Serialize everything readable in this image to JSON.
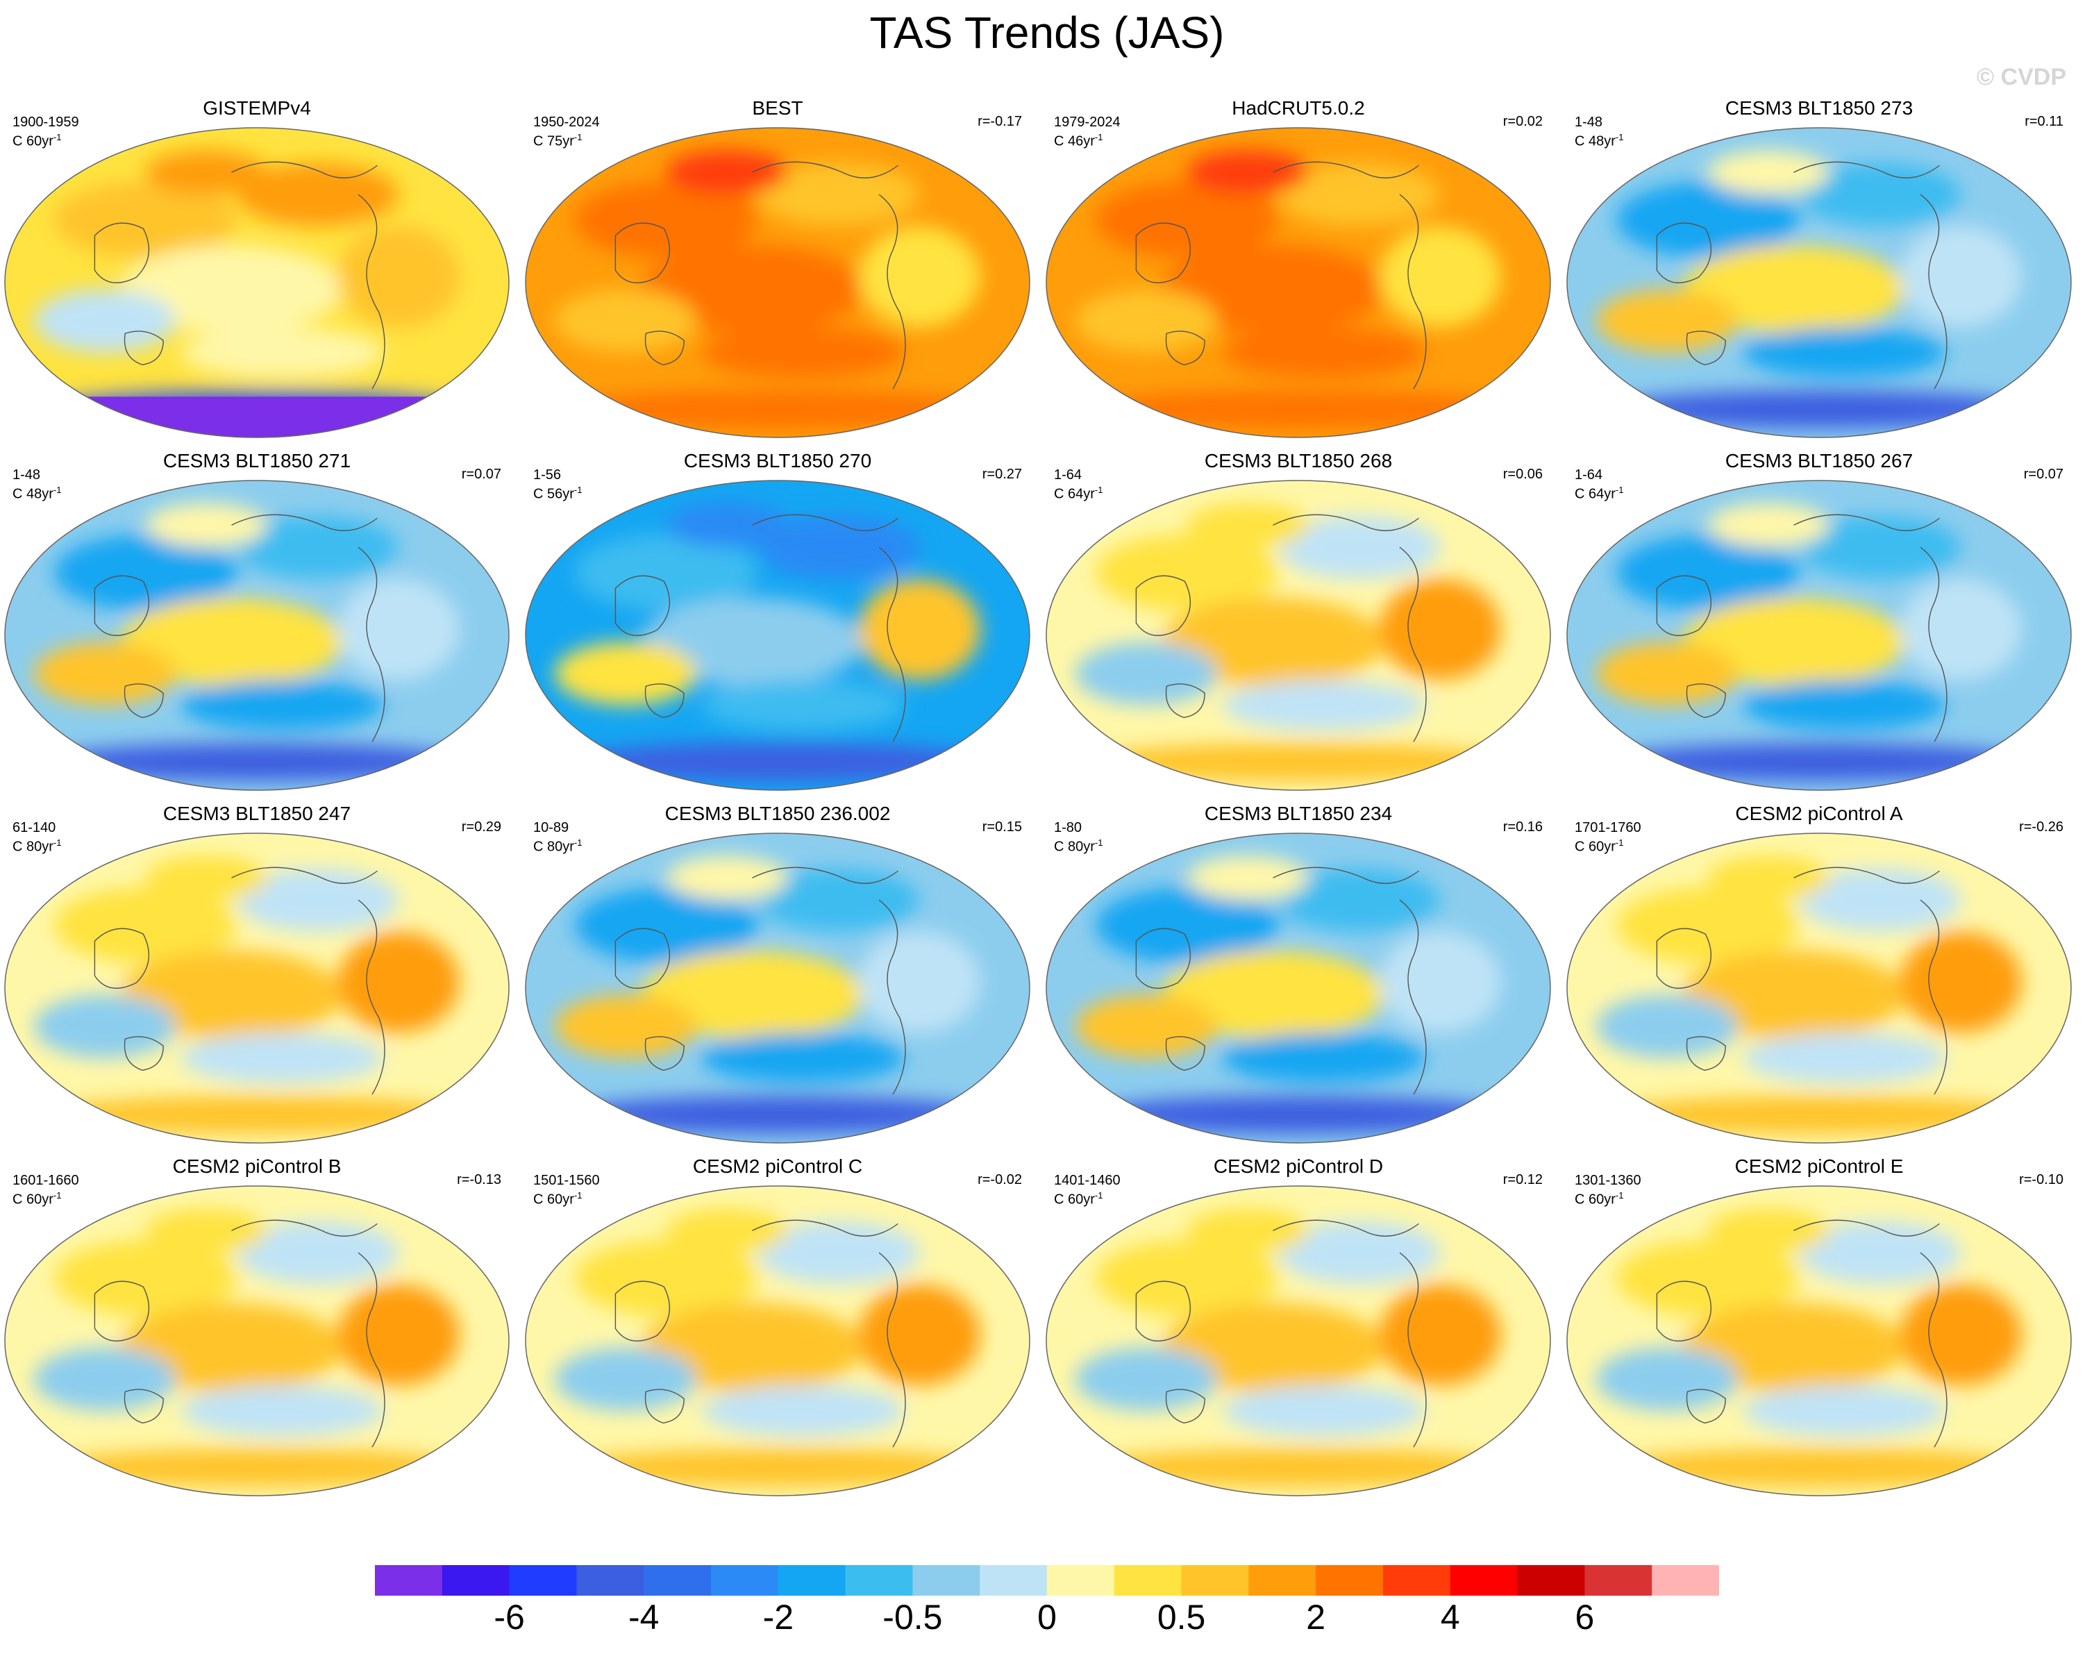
{
  "title": "TAS Trends (JAS)",
  "watermark": "© CVDP",
  "colors": {
    "contour_levels": [
      "#7b2fe8",
      "#3b17f0",
      "#1f3cff",
      "#3c5ee0",
      "#2f6fee",
      "#2b8af5",
      "#14a6f2",
      "#3dbcf0",
      "#8ccdee",
      "#bfe3f6",
      "#fff7a8",
      "#ffe340",
      "#ffc42a",
      "#ff9d0a",
      "#ff7300",
      "#ff3c0a",
      "#ff0000",
      "#cc0000",
      "#d93333",
      "#ffb3b3"
    ],
    "coastline": "#555555"
  },
  "colorbar": {
    "labels": [
      "-6",
      "-4",
      "-2",
      "-0.5",
      "0",
      "0.5",
      "2",
      "4",
      "6"
    ]
  },
  "panels": [
    {
      "title": "GISTEMPv4",
      "period": "1900-1959",
      "units": "C 60yr",
      "unit_exp": "-1",
      "corr": "",
      "pattern": "warm",
      "missing_south": true
    },
    {
      "title": "BEST",
      "period": "1950-2024",
      "units": "C 75yr",
      "unit_exp": "-1",
      "corr": "r=-0.17",
      "pattern": "hot"
    },
    {
      "title": "HadCRUT5.0.2",
      "period": "1979-2024",
      "units": "C 46yr",
      "unit_exp": "-1",
      "corr": "r=0.02",
      "pattern": "hot"
    },
    {
      "title": "CESM3 BLT1850 273",
      "period": "1-48",
      "units": "C 48yr",
      "unit_exp": "-1",
      "corr": "r=0.11",
      "pattern": "cool"
    },
    {
      "title": "CESM3 BLT1850 271",
      "period": "1-48",
      "units": "C 48yr",
      "unit_exp": "-1",
      "corr": "r=0.07",
      "pattern": "cool"
    },
    {
      "title": "CESM3 BLT1850 270",
      "period": "1-56",
      "units": "C 56yr",
      "unit_exp": "-1",
      "corr": "r=0.27",
      "pattern": "cold"
    },
    {
      "title": "CESM3 BLT1850 268",
      "period": "1-64",
      "units": "C 64yr",
      "unit_exp": "-1",
      "corr": "r=0.06",
      "pattern": "mixed"
    },
    {
      "title": "CESM3 BLT1850 267",
      "period": "1-64",
      "units": "C 64yr",
      "unit_exp": "-1",
      "corr": "r=0.07",
      "pattern": "cool"
    },
    {
      "title": "CESM3 BLT1850 247",
      "period": "61-140",
      "units": "C 80yr",
      "unit_exp": "-1",
      "corr": "r=0.29",
      "pattern": "mixed"
    },
    {
      "title": "CESM3 BLT1850 236.002",
      "period": "10-89",
      "units": "C 80yr",
      "unit_exp": "-1",
      "corr": "r=0.15",
      "pattern": "cool"
    },
    {
      "title": "CESM3 BLT1850 234",
      "period": "1-80",
      "units": "C 80yr",
      "unit_exp": "-1",
      "corr": "r=0.16",
      "pattern": "cool"
    },
    {
      "title": "CESM2 piControl A",
      "period": "1701-1760",
      "units": "C 60yr",
      "unit_exp": "-1",
      "corr": "r=-0.26",
      "pattern": "mixed"
    },
    {
      "title": "CESM2 piControl B",
      "period": "1601-1660",
      "units": "C 60yr",
      "unit_exp": "-1",
      "corr": "r=-0.13",
      "pattern": "mixed"
    },
    {
      "title": "CESM2 piControl C",
      "period": "1501-1560",
      "units": "C 60yr",
      "unit_exp": "-1",
      "corr": "r=-0.02",
      "pattern": "mixed"
    },
    {
      "title": "CESM2 piControl D",
      "period": "1401-1460",
      "units": "C 60yr",
      "unit_exp": "-1",
      "corr": "r=0.12",
      "pattern": "mixed"
    },
    {
      "title": "CESM2 piControl E",
      "period": "1301-1360",
      "units": "C 60yr",
      "unit_exp": "-1",
      "corr": "r=-0.10",
      "pattern": "mixed"
    }
  ]
}
